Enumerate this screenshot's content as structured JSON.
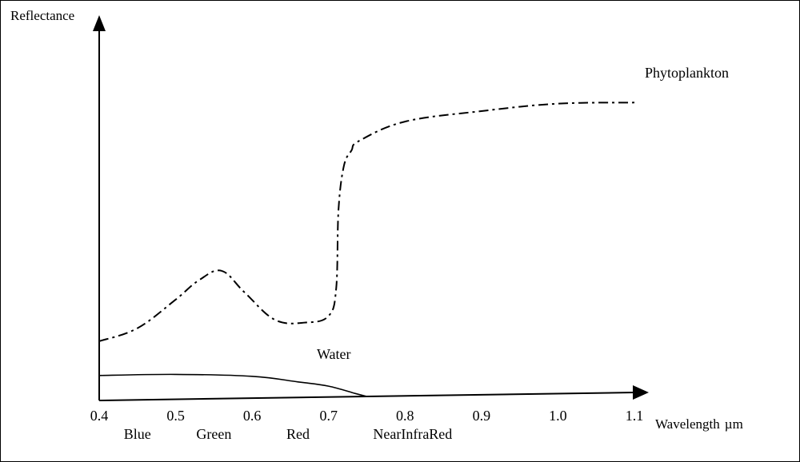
{
  "chart_data": {
    "type": "line",
    "title": "",
    "ylabel": "Reflectance",
    "xlabel": "Wavelength",
    "xlabel_unit": "µm",
    "xlim": [
      0.4,
      1.1
    ],
    "ylim": [
      0,
      1
    ],
    "x_ticks": [
      "0.4",
      "0.5",
      "0.6",
      "0.7",
      "0.8",
      "0.9",
      "1.0",
      "1.1"
    ],
    "bands": [
      {
        "label": "Blue",
        "x": 0.45
      },
      {
        "label": "Green",
        "x": 0.55
      },
      {
        "label": "Red",
        "x": 0.66
      },
      {
        "label": "NearInfraRed",
        "x": 0.81
      }
    ],
    "series": [
      {
        "name": "Phytoplankton",
        "style": "dash-dot",
        "color": "#000000",
        "x": [
          0.4,
          0.45,
          0.5,
          0.53,
          0.56,
          0.59,
          0.63,
          0.67,
          0.7,
          0.71,
          0.713,
          0.72,
          0.73,
          0.74,
          0.8,
          0.9,
          1.0,
          1.1
        ],
        "y": [
          0.19,
          0.23,
          0.32,
          0.38,
          0.41,
          0.34,
          0.25,
          0.24,
          0.26,
          0.35,
          0.6,
          0.74,
          0.79,
          0.82,
          0.88,
          0.91,
          0.93,
          0.93
        ]
      },
      {
        "name": "Water",
        "style": "solid",
        "color": "#000000",
        "x": [
          0.4,
          0.5,
          0.6,
          0.66,
          0.7,
          0.735,
          0.75
        ],
        "y": [
          0.08,
          0.08,
          0.07,
          0.05,
          0.035,
          0.01,
          0.0
        ]
      }
    ]
  }
}
